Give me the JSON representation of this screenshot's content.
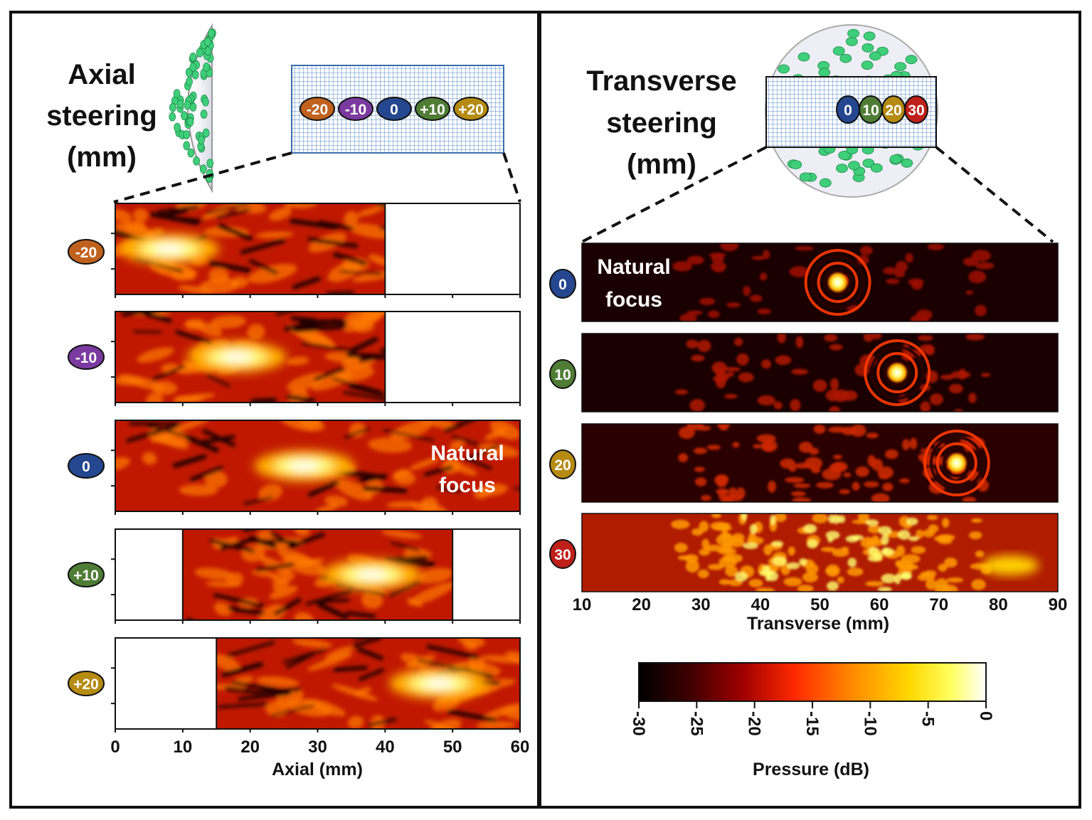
{
  "left_panel": {
    "title": [
      "Axial",
      "steering",
      "(mm)"
    ],
    "grid_markers": [
      "-20",
      "-10",
      "0",
      "+10",
      "+20"
    ],
    "rows": [
      {
        "label": "-20",
        "color": "#c0621e",
        "start": 0,
        "end": 40,
        "focus": 8
      },
      {
        "label": "-10",
        "color": "#7b3aa0",
        "start": 0,
        "end": 40,
        "focus": 18
      },
      {
        "label": "0",
        "color": "#24478f",
        "start": 0,
        "end": 60,
        "focus": 28
      },
      {
        "label": "+10",
        "color": "#4f7d35",
        "start": 10,
        "end": 50,
        "focus": 38
      },
      {
        "label": "+20",
        "color": "#b58b12",
        "start": 15,
        "end": 60,
        "focus": 48
      }
    ],
    "overlay": [
      "Natural",
      "focus"
    ],
    "x_ticks": [
      "0",
      "10",
      "20",
      "30",
      "40",
      "50",
      "60"
    ],
    "x_label": "Axial (mm)"
  },
  "right_panel": {
    "title": [
      "Transverse",
      "steering",
      "(mm)"
    ],
    "grid_markers": [
      "0",
      "10",
      "20",
      "30"
    ],
    "rows": [
      {
        "label": "0",
        "color": "#24478f",
        "focus": 53
      },
      {
        "label": "10",
        "color": "#4f7d35",
        "focus": 63
      },
      {
        "label": "20",
        "color": "#b58b12",
        "focus": 73
      },
      {
        "label": "30",
        "color": "#c0201a",
        "focus": 82
      }
    ],
    "overlay": [
      "Natural",
      "focus"
    ],
    "x_ticks": [
      "10",
      "20",
      "30",
      "40",
      "50",
      "60",
      "70",
      "80",
      "90"
    ],
    "x_label": "Transverse (mm)"
  },
  "colorbar": {
    "ticks": [
      "-30",
      "-25",
      "-20",
      "-15",
      "-10",
      "-5",
      "0"
    ],
    "label": "Pressure (dB)",
    "colors": [
      "#000000",
      "#3a0000",
      "#a00000",
      "#ff2a00",
      "#ff8c00",
      "#ffd800",
      "#ffff60",
      "#ffffff"
    ]
  }
}
